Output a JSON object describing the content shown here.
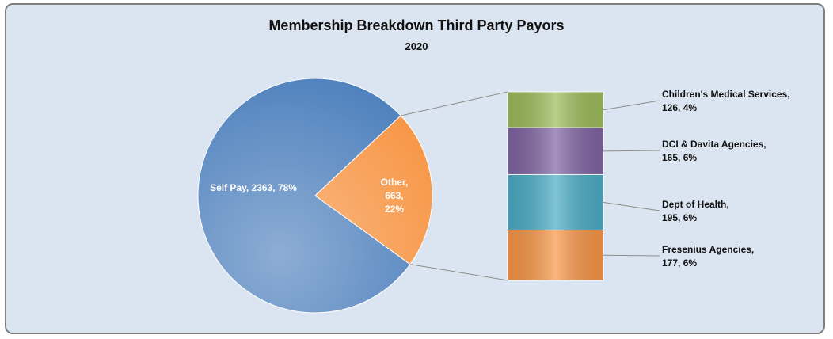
{
  "chart_data": {
    "type": "pie-of-bar",
    "title": "Membership Breakdown Third Party Payors",
    "subtitle": "2020",
    "values": [
      2363,
      663
    ],
    "value_labels": [
      "Self Pay, 2363, 78%",
      "Other,\n663,\n22%"
    ],
    "colors": [
      "#4f81bd",
      "#f79646"
    ],
    "breakdown": {
      "values": [
        126,
        165,
        195,
        177
      ],
      "value_labels": [
        "Children's Medical Services,\n126, 4%",
        "DCI & Davita Agencies,\n165, 6%",
        "Dept of Health,\n195, 6%",
        "Fresenius Agencies,\n177, 6%"
      ],
      "colors": [
        "#9bbb59",
        "#8064a2",
        "#4bacc6",
        "#f79646"
      ]
    }
  }
}
